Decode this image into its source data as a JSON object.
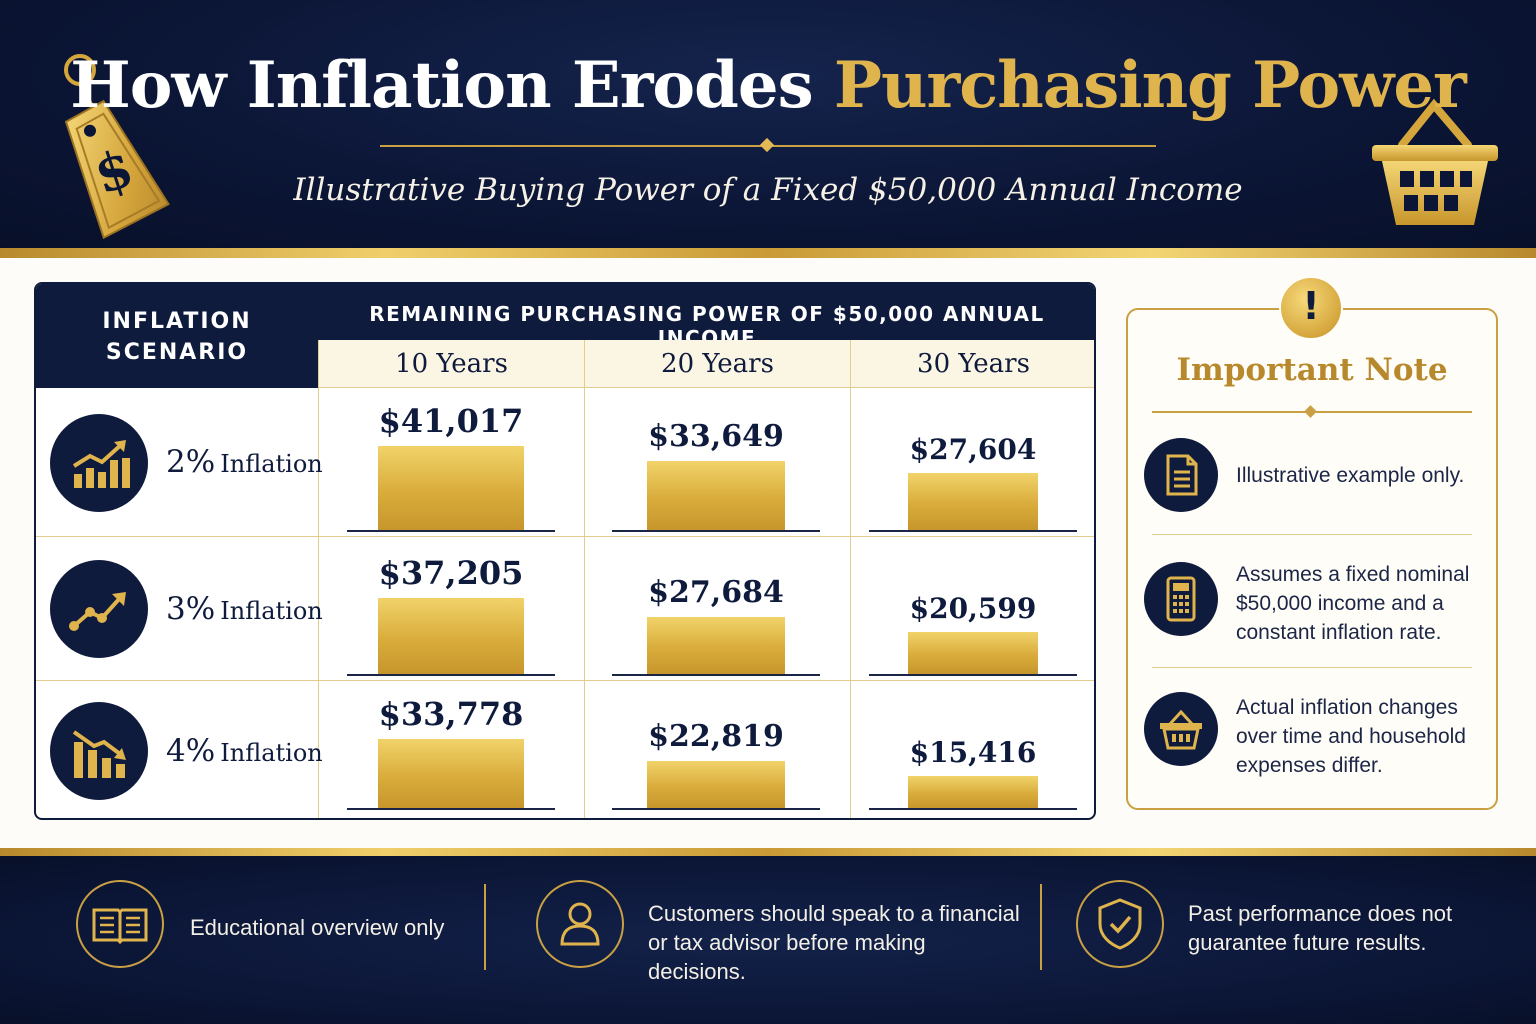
{
  "header": {
    "title_part1": "How Inflation Erodes",
    "title_part2": "Purchasing Power",
    "subtitle": "Illustrative Buying Power of a Fixed $50,000 Annual Income"
  },
  "table": {
    "scenario_header_line1": "INFLATION",
    "scenario_header_line2": "SCENARIO",
    "main_header": "REMAINING PURCHASING POWER OF $50,000 ANNUAL INCOME",
    "years": [
      "10 Years",
      "20 Years",
      "30 Years"
    ],
    "rows": [
      {
        "pct": "2%",
        "word": "Inflation",
        "icon": "bar-chart-up-icon",
        "values": [
          "$41,017",
          "$33,649",
          "$27,604"
        ]
      },
      {
        "pct": "3%",
        "word": "Inflation",
        "icon": "line-trend-up-icon",
        "values": [
          "$37,205",
          "$27,684",
          "$20,599"
        ]
      },
      {
        "pct": "4%",
        "word": "Inflation",
        "icon": "bar-chart-down-icon",
        "values": [
          "$33,778",
          "$22,819",
          "$15,416"
        ]
      }
    ]
  },
  "chart_data": {
    "type": "bar",
    "categories": [
      "10 Years",
      "20 Years",
      "30 Years"
    ],
    "series": [
      {
        "name": "2% Inflation",
        "values": [
          41017,
          33649,
          27604
        ]
      },
      {
        "name": "3% Inflation",
        "values": [
          37205,
          27684,
          20599
        ]
      },
      {
        "name": "4% Inflation",
        "values": [
          33778,
          22819,
          15416
        ]
      }
    ],
    "title": "How Inflation Erodes Purchasing Power",
    "subtitle": "Illustrative Buying Power of a Fixed $50,000 Annual Income",
    "ylabel": "REMAINING PURCHASING POWER OF $50,000 ANNUAL INCOME",
    "ylim": [
      0,
      50000
    ]
  },
  "note": {
    "badge": "!",
    "title": "Important Note",
    "items": [
      {
        "icon": "document-icon",
        "text": "Illustrative example only."
      },
      {
        "icon": "calculator-icon",
        "text": "Assumes a fixed nominal $50,000 income and a constant inflation rate."
      },
      {
        "icon": "basket-icon",
        "text": "Actual inflation changes over time and household expenses differ."
      }
    ]
  },
  "footer": {
    "items": [
      {
        "icon": "book-icon",
        "text": "Educational overview only"
      },
      {
        "icon": "person-icon",
        "text": "Customers should speak to a financial or tax advisor before making decisions."
      },
      {
        "icon": "shield-check-icon",
        "text": "Past performance does not guarantee future results."
      }
    ]
  },
  "colors": {
    "navy": "#0f1b3d",
    "gold": "#d9ac3b",
    "gold_light": "#f1d36a",
    "cream": "#fbf5e4"
  },
  "decor": {
    "tag_icon": "price-tag-icon",
    "basket_icon": "shopping-basket-icon"
  }
}
